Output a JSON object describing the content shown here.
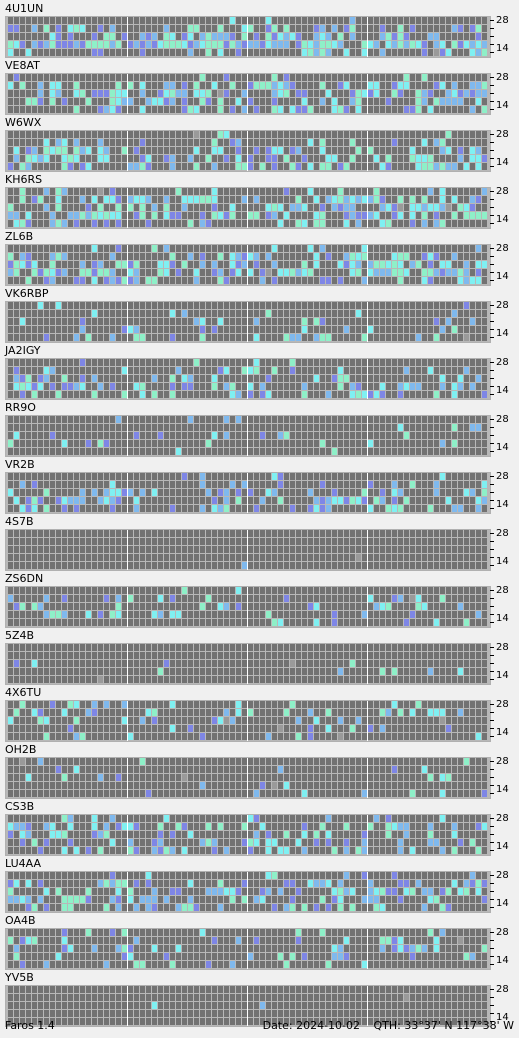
{
  "app": {
    "title": "Faros 1.4"
  },
  "status": {
    "date": "Date: 2024-10-02",
    "qth": "QTH: 33°37' N  117°38' W"
  },
  "scale": {
    "top_label": "28",
    "bottom_label": "14"
  },
  "colors": {
    "cell_empty": "#727272",
    "cell_weak": "#7e86e6",
    "cell_mid": "#7fb9ee",
    "cell_strong": "#7ff0f2",
    "cell_green": "#8ef0c8",
    "cell_grey": "#9a9a9a",
    "grid_gap": "#b8b8b8",
    "hour_divider": "#ffffff"
  },
  "stations": [
    {
      "callsign": "4U1UN",
      "activity": [
        0.08,
        0.35,
        0.55,
        0.9,
        0.25
      ]
    },
    {
      "callsign": "VE8AT",
      "activity": [
        0.1,
        0.45,
        0.55,
        0.6,
        0.35
      ]
    },
    {
      "callsign": "W6WX",
      "activity": [
        0.05,
        0.2,
        0.35,
        0.45,
        0.5
      ]
    },
    {
      "callsign": "KH6RS",
      "activity": [
        0.3,
        0.55,
        0.5,
        0.55,
        0.2
      ]
    },
    {
      "callsign": "ZL6B",
      "activity": [
        0.1,
        0.4,
        0.55,
        0.5,
        0.4
      ]
    },
    {
      "callsign": "VK6RBP",
      "activity": [
        0.02,
        0.08,
        0.12,
        0.2,
        0.15
      ]
    },
    {
      "callsign": "JA2IGY",
      "activity": [
        0.05,
        0.2,
        0.25,
        0.45,
        0.2
      ]
    },
    {
      "callsign": "RR9O",
      "activity": [
        0.02,
        0.05,
        0.08,
        0.12,
        0.05
      ]
    },
    {
      "callsign": "VR2B",
      "activity": [
        0.05,
        0.15,
        0.3,
        0.45,
        0.35
      ]
    },
    {
      "callsign": "4S7B",
      "activity": [
        0.0,
        0.0,
        0.0,
        0.0,
        0.01
      ]
    },
    {
      "callsign": "ZS6DN",
      "activity": [
        0.05,
        0.15,
        0.15,
        0.18,
        0.1
      ]
    },
    {
      "callsign": "5Z4B",
      "activity": [
        0.0,
        0.0,
        0.02,
        0.03,
        0.02
      ]
    },
    {
      "callsign": "4X6TU",
      "activity": [
        0.1,
        0.25,
        0.15,
        0.1,
        0.1
      ]
    },
    {
      "callsign": "OH2B",
      "activity": [
        0.05,
        0.08,
        0.1,
        0.06,
        0.05
      ]
    },
    {
      "callsign": "CS3B",
      "activity": [
        0.1,
        0.35,
        0.35,
        0.35,
        0.4
      ]
    },
    {
      "callsign": "LU4AA",
      "activity": [
        0.1,
        0.3,
        0.45,
        0.45,
        0.45
      ]
    },
    {
      "callsign": "OA4B",
      "activity": [
        0.05,
        0.2,
        0.25,
        0.15,
        0.15
      ]
    },
    {
      "callsign": "YV5B",
      "activity": [
        0.0,
        0.0,
        0.01,
        0.01,
        0.01
      ]
    }
  ]
}
